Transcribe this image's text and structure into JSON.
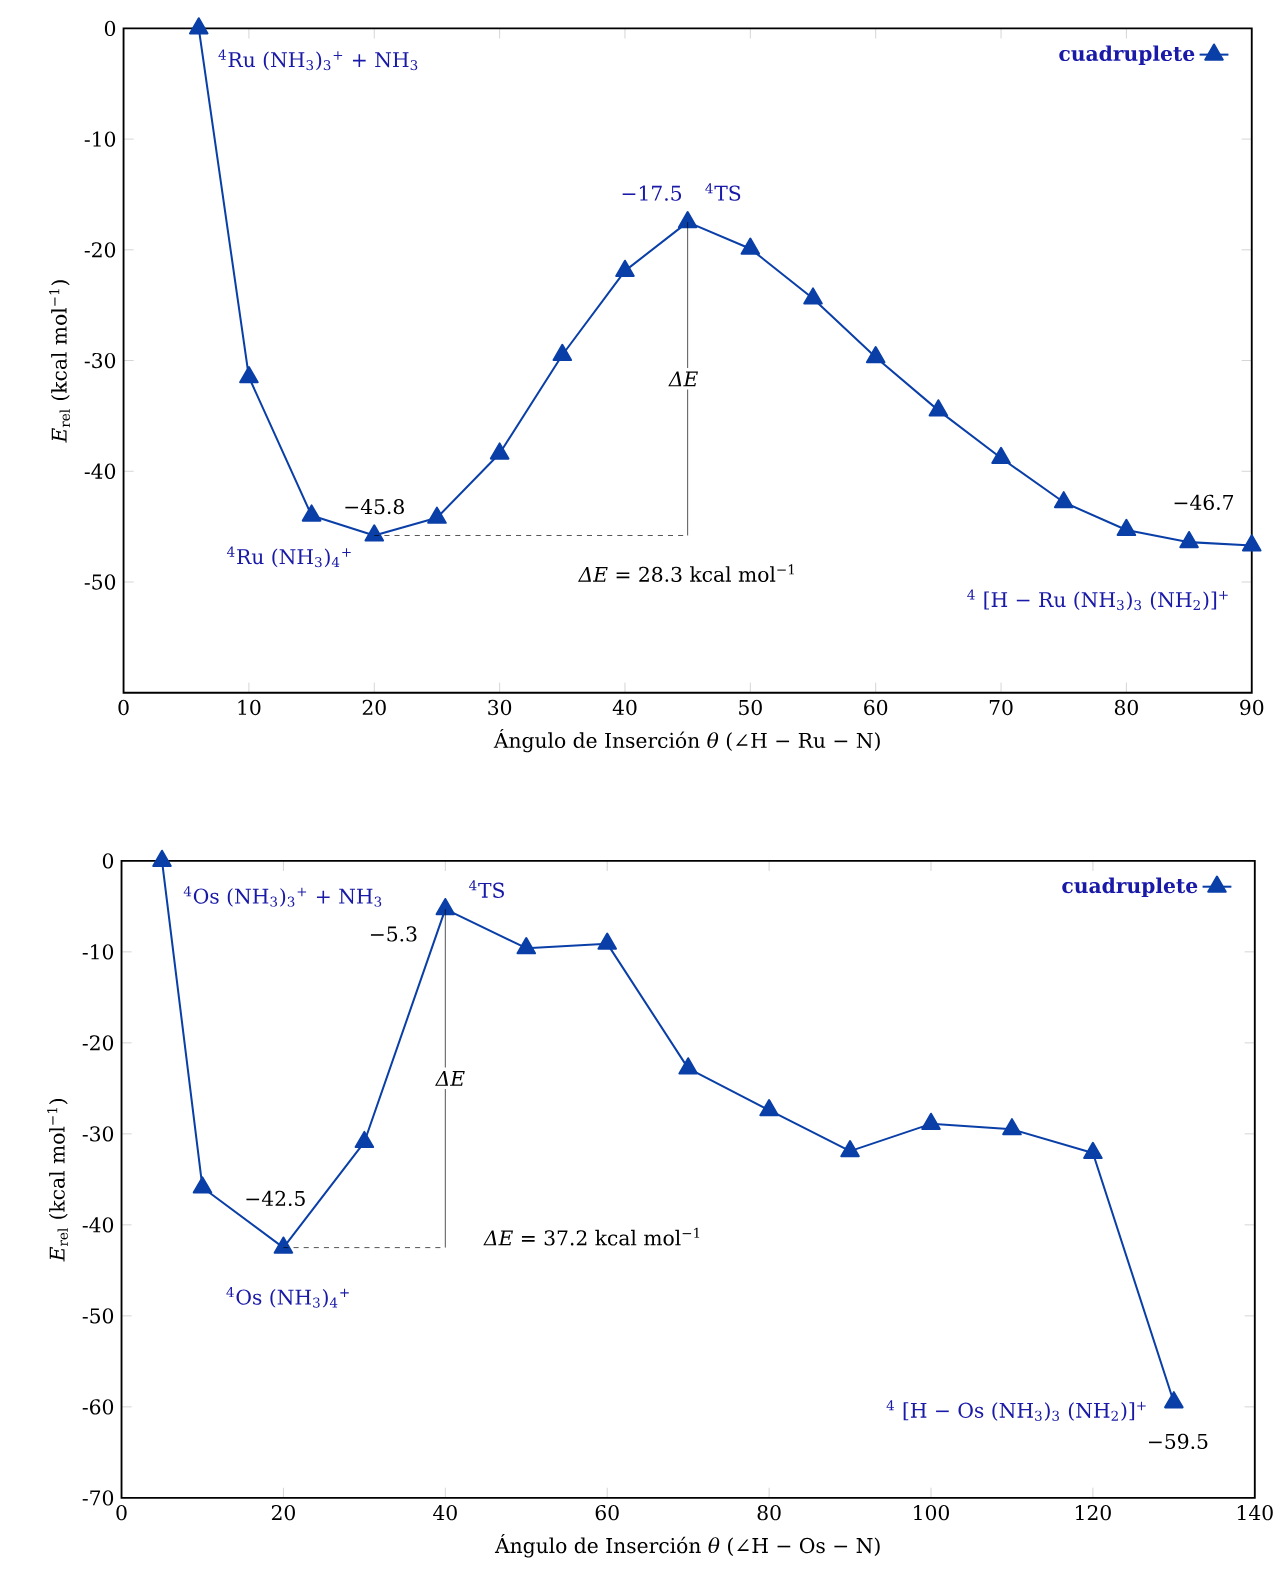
{
  "chart_data": [
    {
      "type": "line",
      "xlabel": "Ángulo de Inserción *θ* (∠H − Ru − N)",
      "ylabel": "*E*$_{rel}$ (kcal mol$^{−1}$)",
      "xlim": [
        0,
        90
      ],
      "ylim": [
        -60,
        0
      ],
      "xticks": [
        0,
        10,
        20,
        30,
        40,
        50,
        60,
        70,
        80,
        90
      ],
      "yticks": [
        0,
        -10,
        -20,
        -30,
        -40,
        -50
      ],
      "legend": "top right",
      "marker": "triangle",
      "line_style": "solid",
      "series": [
        {
          "name": "cuadruplete",
          "color": "#0a3fa8",
          "x": [
            6,
            10,
            15,
            20,
            25,
            30,
            35,
            40,
            45,
            50,
            55,
            60,
            65,
            70,
            75,
            80,
            85,
            90
          ],
          "values": [
            0,
            -31.5,
            -44.0,
            -45.8,
            -44.2,
            -38.4,
            -29.5,
            -21.9,
            -17.5,
            -19.9,
            -24.4,
            -29.7,
            -34.5,
            -38.8,
            -42.8,
            -45.3,
            -46.4,
            -46.7
          ]
        }
      ],
      "annotations": [
        {
          "text": "$^{4}$Ru (NH$_{3}$)$_{3}$$^{+}$ + NH$_{3}$",
          "x": 6,
          "y": 0
        },
        {
          "text": "$^{4}$Ru (NH$_{3}$)$_{4}$$^{+}$",
          "x": 20,
          "y": -45.8
        },
        {
          "text": "−45.8",
          "x": 20,
          "y": -45.8
        },
        {
          "text": "−17.5",
          "x": 45,
          "y": -17.5
        },
        {
          "text": "$^{4}$TS",
          "x": 45,
          "y": -17.5
        },
        "*ΔE*",
        "*ΔE* = 28.3 kcal mol$^{−1}$",
        {
          "text": "−46.7",
          "x": 90,
          "y": -46.7
        },
        "$^{4}$ [H − Ru (NH$_{3}$)$_{3}$ (NH$_{2}$)]$^{+}$"
      ]
    },
    {
      "type": "line",
      "xlabel": "Ángulo de Inserción *θ* (∠H − Os − N)",
      "ylabel": "*E*$_{rel}$ (kcal mol$^{−1}$)",
      "xlim": [
        0,
        140
      ],
      "ylim": [
        -70,
        0
      ],
      "xticks": [
        0,
        20,
        40,
        60,
        80,
        100,
        120,
        140
      ],
      "yticks": [
        0,
        -10,
        -20,
        -30,
        -40,
        -50,
        -60,
        -70
      ],
      "legend": "top right",
      "marker": "triangle",
      "line_style": "solid",
      "series": [
        {
          "name": "cuadruplete",
          "color": "#0a3fa8",
          "x": [
            5,
            10,
            20,
            30,
            40,
            50,
            60,
            70,
            80,
            90,
            100,
            110,
            120,
            130
          ],
          "values": [
            0,
            -35.9,
            -42.5,
            -30.9,
            -5.3,
            -9.6,
            -9.1,
            -22.8,
            -27.4,
            -31.9,
            -28.9,
            -29.5,
            -32.1,
            -59.5
          ]
        }
      ],
      "annotations": [
        {
          "text": "$^{4}$Os (NH$_{3}$)$_{3}$$^{+}$ + NH$_{3}$",
          "x": 5,
          "y": 0
        },
        {
          "text": "$^{4}$TS",
          "x": 40,
          "y": -5.3
        },
        {
          "text": "−5.3",
          "x": 40,
          "y": -5.3
        },
        {
          "text": "−42.5",
          "x": 20,
          "y": -42.5
        },
        {
          "text": "$^{4}$Os (NH$_{3}$)$_{4}$$^{+}$",
          "x": 20,
          "y": -42.5
        },
        "*ΔE*",
        "*ΔE* = 37.2 kcal mol$^{−1}$",
        "$^{4}$ [H − Os (NH$_{3}$)$_{3}$ (NH$_{2}$)]$^{+}$",
        {
          "text": "−59.5",
          "x": 130,
          "y": -59.5
        }
      ]
    }
  ]
}
